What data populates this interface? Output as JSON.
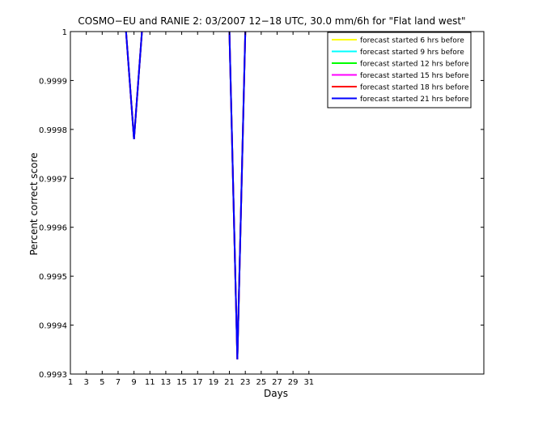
{
  "chart_data": {
    "type": "line",
    "title": "COSMO−EU and RANIE 2: 03/2007 12−18 UTC, 30.0 mm/6h for \"Flat land west\"",
    "xlabel": "Days",
    "ylabel": "Percent correct score",
    "xlim": [
      1,
      53
    ],
    "ylim": [
      0.9993,
      1
    ],
    "x_ticks": [
      1,
      3,
      5,
      7,
      9,
      11,
      13,
      15,
      17,
      19,
      21,
      23,
      25,
      27,
      29,
      31
    ],
    "y_ticks": [
      0.9993,
      0.9994,
      0.9995,
      0.9996,
      0.9997,
      0.9998,
      0.9999,
      1
    ],
    "y_tick_labels": [
      "0.9993",
      "0.9994",
      "0.9995",
      "0.9996",
      "0.9997",
      "0.9998",
      "0.9999",
      "1"
    ],
    "grid": false,
    "legend_position": "top-right",
    "series": [
      {
        "name": "forecast started 6 hrs before",
        "color": "#ffff00",
        "x": [
          8,
          9,
          10,
          21,
          22,
          23
        ],
        "y": [
          1,
          0.99978,
          1,
          1,
          0.99933,
          1
        ]
      },
      {
        "name": "forecast started 9 hrs before",
        "color": "#00ffff",
        "x": [
          8,
          9,
          10,
          21,
          22,
          23
        ],
        "y": [
          1,
          0.99978,
          1,
          1,
          0.99933,
          1
        ]
      },
      {
        "name": "forecast started 12 hrs before",
        "color": "#00ff00",
        "x": [
          8,
          9,
          10,
          21,
          22,
          23
        ],
        "y": [
          1,
          0.99978,
          1,
          1,
          0.99933,
          1
        ]
      },
      {
        "name": "forecast started 15 hrs before",
        "color": "#ff00ff",
        "x": [
          8,
          9,
          10,
          21,
          22,
          23
        ],
        "y": [
          1,
          0.99978,
          1,
          1,
          0.99933,
          1
        ]
      },
      {
        "name": "forecast started 18 hrs before",
        "color": "#ff0000",
        "x": [
          8,
          9,
          10,
          21,
          22,
          23
        ],
        "y": [
          1,
          0.99978,
          1,
          1,
          0.99933,
          1
        ]
      },
      {
        "name": "forecast started 21 hrs before",
        "color": "#0000ff",
        "x": [
          8,
          9,
          10,
          21,
          22,
          23
        ],
        "y": [
          1,
          0.99978,
          1,
          1,
          0.99933,
          1
        ]
      }
    ]
  }
}
